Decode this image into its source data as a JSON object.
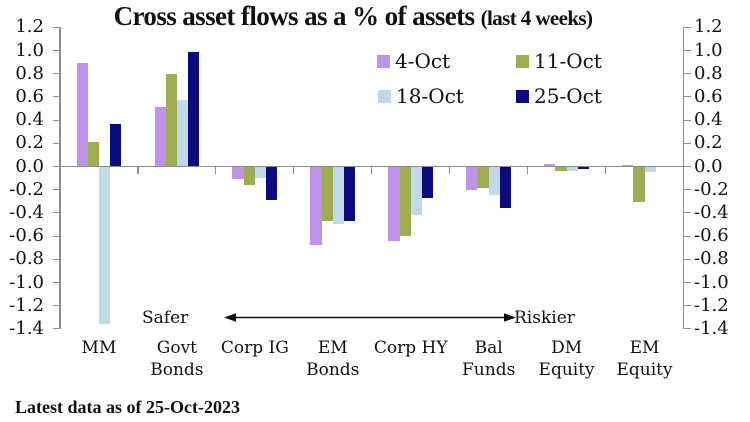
{
  "title": {
    "main": "Cross asset flows as a % of assets",
    "suffix": "(last 4 weeks)"
  },
  "annotations": {
    "left": "Safer",
    "right": "Riskier"
  },
  "footnote": "Latest data as of 25-Oct-2023",
  "chart_data": {
    "type": "bar",
    "title": "Cross asset flows as a % of assets (last 4 weeks)",
    "categories": [
      "MM",
      "Govt Bonds",
      "Corp IG",
      "EM Bonds",
      "Corp HY",
      "Bal Funds",
      "DM Equity",
      "EM Equity"
    ],
    "category_label_lines": [
      [
        "MM"
      ],
      [
        "Govt",
        "Bonds"
      ],
      [
        "Corp IG"
      ],
      [
        "EM",
        "Bonds"
      ],
      [
        "Corp HY"
      ],
      [
        "Bal",
        "Funds"
      ],
      [
        "DM",
        "Equity"
      ],
      [
        "EM",
        "Equity"
      ]
    ],
    "series": [
      {
        "name": "4-Oct",
        "color": "#be93e8",
        "values": [
          0.89,
          0.51,
          -0.1,
          -0.67,
          -0.64,
          -0.2,
          0.02,
          0.01
        ]
      },
      {
        "name": "11-Oct",
        "color": "#9eac54",
        "values": [
          0.21,
          0.8,
          -0.15,
          -0.46,
          -0.59,
          -0.18,
          -0.03,
          -0.3
        ]
      },
      {
        "name": "18-Oct",
        "color": "#c0dae8",
        "values": [
          -1.35,
          0.57,
          -0.09,
          -0.49,
          -0.41,
          -0.24,
          -0.03,
          -0.04
        ]
      },
      {
        "name": "25-Oct",
        "color": "#0b0b7e",
        "values": [
          0.37,
          0.99,
          -0.28,
          -0.46,
          -0.27,
          -0.35,
          -0.02,
          0.0
        ]
      }
    ],
    "ylim": [
      -1.4,
      1.2
    ],
    "ytick_step": 0.2,
    "ytick_labels": [
      "1.2",
      "1.0",
      "0.8",
      "0.6",
      "0.4",
      "0.2",
      "0.0",
      "-0.2",
      "-0.4",
      "-0.6",
      "-0.8",
      "-1.0",
      "-1.2",
      "-1.4"
    ],
    "y_axis_sides": [
      "left",
      "right"
    ],
    "xlabel": "",
    "ylabel": "",
    "grid": false,
    "legend_position": "inside-top-center",
    "axis_color": "#8c8c8c",
    "background_color": "#ffffff"
  }
}
